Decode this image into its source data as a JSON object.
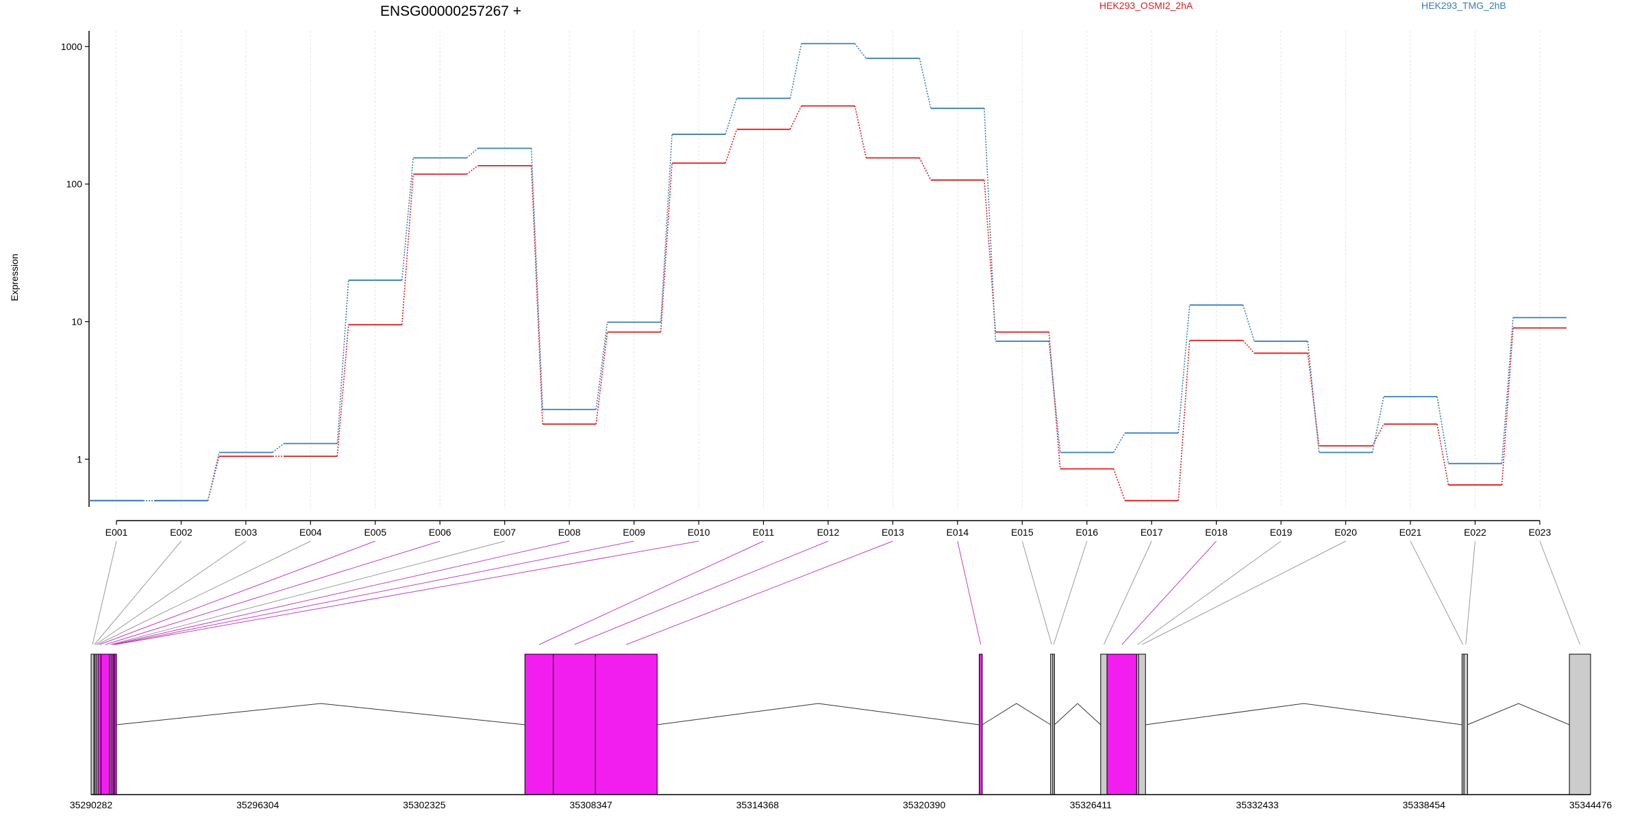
{
  "chart_data": {
    "type": "line",
    "title": "ENSG00000257267 +",
    "ylabel": "Expression",
    "yscale": "log",
    "ylim": [
      0.45,
      1300
    ],
    "y_ticks": [
      {
        "value": 1,
        "label": "1"
      },
      {
        "value": 10,
        "label": "10"
      },
      {
        "value": 100,
        "label": "100"
      },
      {
        "value": 1000,
        "label": "1000"
      }
    ],
    "grid": "vertical dotted",
    "legend_placement": "top",
    "categories": [
      "E001",
      "E002",
      "E003",
      "E004",
      "E005",
      "E006",
      "E007",
      "E008",
      "E009",
      "E010",
      "E011",
      "E012",
      "E013",
      "E014",
      "E015",
      "E016",
      "E017",
      "E018",
      "E019",
      "E020",
      "E021",
      "E022",
      "E023"
    ],
    "series": [
      {
        "name": "HEK293_OSMI2_2hA",
        "color": "#e41a1c",
        "values": [
          0.5,
          0.5,
          1.05,
          1.05,
          9.5,
          118,
          136,
          1.8,
          8.4,
          142,
          250,
          370,
          155,
          107,
          8.4,
          0.85,
          0.5,
          7.3,
          5.9,
          1.25,
          1.8,
          0.65,
          9.0
        ]
      },
      {
        "name": "HEK293_TMG_2hB",
        "color": "#377eb8",
        "values": [
          0.5,
          0.5,
          1.12,
          1.3,
          20,
          155,
          182,
          2.3,
          9.9,
          230,
          420,
          1050,
          820,
          355,
          7.2,
          1.12,
          1.55,
          13.2,
          7.2,
          1.12,
          2.85,
          0.93,
          10.7
        ]
      }
    ],
    "gene_model": {
      "coordinate_ticks": [
        "35290282",
        "35296304",
        "35302325",
        "35308347",
        "35314368",
        "35320390",
        "35326411",
        "35332433",
        "35338454",
        "35344476"
      ],
      "exon_highlight_color": "#f21ef0",
      "exon_default_color": "#cccccc",
      "exons": [
        {
          "id": "E001",
          "start": 35290282,
          "end": 35290380,
          "highlight": false
        },
        {
          "id": "E002",
          "start": 35290380,
          "end": 35290420,
          "highlight": false
        },
        {
          "id": "E003",
          "start": 35290420,
          "end": 35290470,
          "highlight": false
        },
        {
          "id": "E004",
          "start": 35290470,
          "end": 35290530,
          "highlight": false
        },
        {
          "id": "E005",
          "start": 35290530,
          "end": 35290640,
          "highlight": true
        },
        {
          "id": "E006",
          "start": 35290640,
          "end": 35290950,
          "highlight": true
        },
        {
          "id": "E007",
          "start": 35290950,
          "end": 35291000,
          "highlight": false
        },
        {
          "id": "E008",
          "start": 35291000,
          "end": 35291080,
          "highlight": true
        },
        {
          "id": "E009",
          "start": 35291080,
          "end": 35291130,
          "highlight": true
        },
        {
          "id": "E010",
          "start": 35291130,
          "end": 35291200,
          "highlight": true
        },
        {
          "id": "E011",
          "start": 35305960,
          "end": 35306990,
          "highlight": true
        },
        {
          "id": "E012",
          "start": 35306990,
          "end": 35308510,
          "highlight": true
        },
        {
          "id": "E013",
          "start": 35308510,
          "end": 35310740,
          "highlight": true
        },
        {
          "id": "E014",
          "start": 35322380,
          "end": 35322490,
          "highlight": true
        },
        {
          "id": "E015",
          "start": 35324960,
          "end": 35325040,
          "highlight": false
        },
        {
          "id": "E016",
          "start": 35325040,
          "end": 35325100,
          "highlight": false
        },
        {
          "id": "E017",
          "start": 35326770,
          "end": 35327000,
          "highlight": false
        },
        {
          "id": "E018",
          "start": 35327000,
          "end": 35328070,
          "highlight": true
        },
        {
          "id": "E019",
          "start": 35328070,
          "end": 35328140,
          "highlight": false
        },
        {
          "id": "E020",
          "start": 35328140,
          "end": 35328390,
          "highlight": false
        },
        {
          "id": "E021",
          "start": 35339830,
          "end": 35339900,
          "highlight": false
        },
        {
          "id": "E022",
          "start": 35339900,
          "end": 35340030,
          "highlight": false
        },
        {
          "id": "E023",
          "start": 35343710,
          "end": 35344476,
          "highlight": false
        }
      ]
    }
  }
}
